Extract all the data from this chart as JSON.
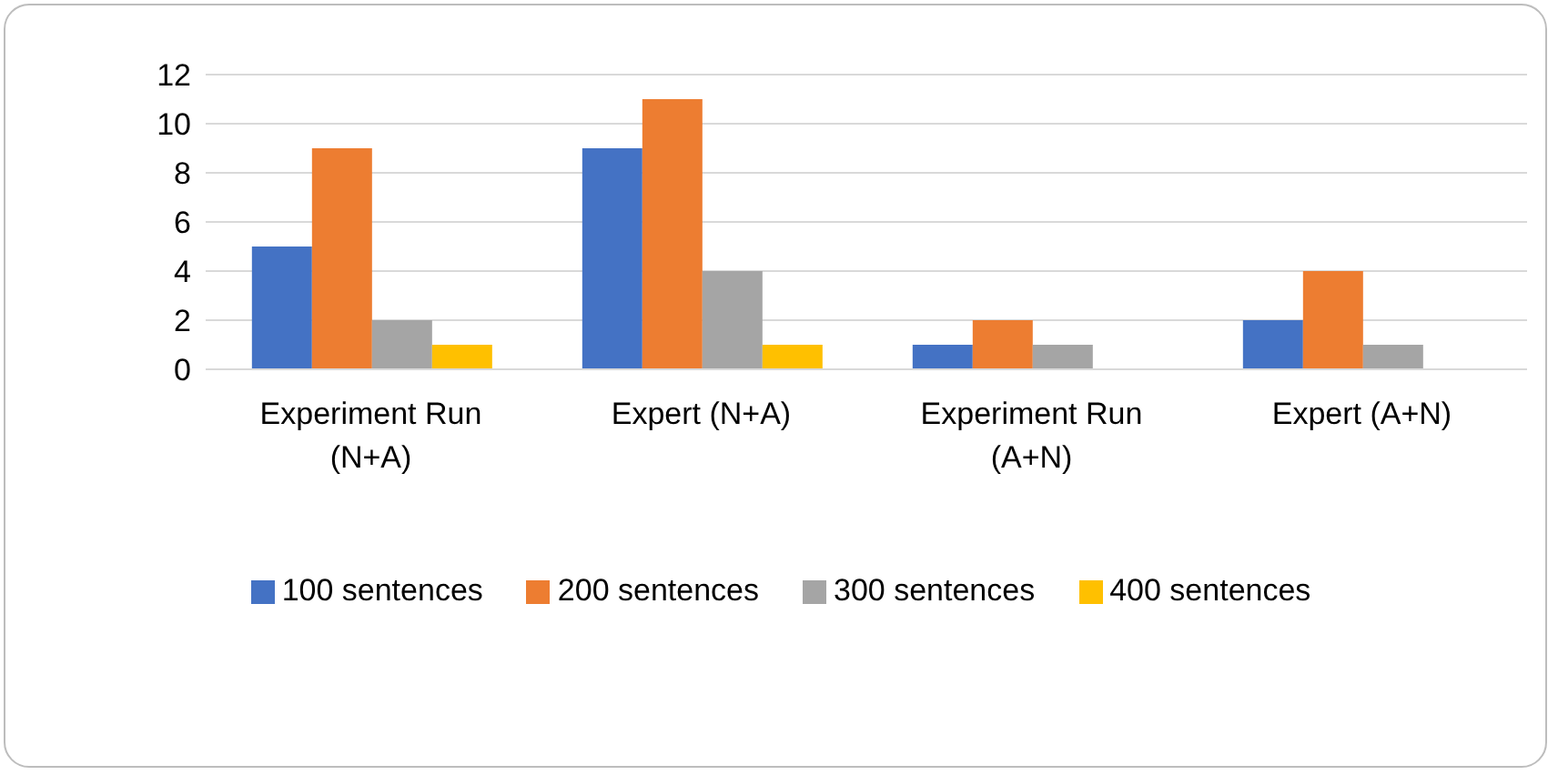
{
  "chart_data": {
    "type": "bar",
    "categories": [
      "Experiment Run (N+A)",
      "Expert (N+A)",
      "Experiment Run (A+N)",
      "Expert (A+N)"
    ],
    "series": [
      {
        "name": "100 sentences",
        "color": "#4472c4",
        "values": [
          5,
          9,
          1,
          2
        ]
      },
      {
        "name": "200 sentences",
        "color": "#ed7d31",
        "values": [
          9,
          11,
          2,
          4
        ]
      },
      {
        "name": "300 sentences",
        "color": "#a5a5a5",
        "values": [
          2,
          4,
          1,
          1
        ]
      },
      {
        "name": "400 sentences",
        "color": "#ffc000",
        "values": [
          1,
          1,
          0,
          0
        ]
      }
    ],
    "ylim": [
      0,
      12
    ],
    "yticks": [
      0,
      2,
      4,
      6,
      8,
      10,
      12
    ],
    "grid": "y",
    "legend": "bottom"
  }
}
